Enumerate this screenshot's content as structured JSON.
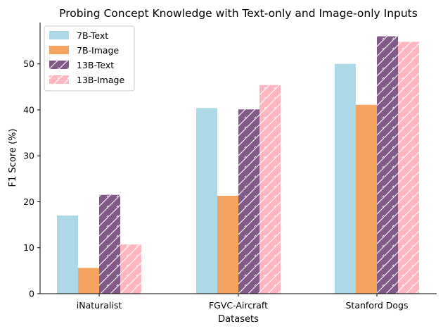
{
  "chart_data": {
    "type": "bar",
    "title": "Probing Concept Knowledge with Text-only and Image-only Inputs",
    "xlabel": "Datasets",
    "ylabel": "F1 Score (%)",
    "categories": [
      "iNaturalist",
      "FGVC-Aircraft",
      "Stanford Dogs"
    ],
    "ylim": [
      0,
      59
    ],
    "yticks": [
      0,
      10,
      20,
      30,
      40,
      50
    ],
    "grid": false,
    "legend_position": "top-left",
    "series": [
      {
        "name": "7B-Text",
        "values": [
          17.0,
          40.4,
          50.0
        ],
        "color": "#add8e6",
        "hatch": false
      },
      {
        "name": "7B-Image",
        "values": [
          5.6,
          21.3,
          41.1
        ],
        "color": "#f4a460",
        "hatch": false
      },
      {
        "name": "13B-Text",
        "values": [
          21.5,
          40.1,
          56.0
        ],
        "color": "#825a87",
        "hatch": true
      },
      {
        "name": "13B-Image",
        "values": [
          10.7,
          45.4,
          54.8
        ],
        "color": "#ffb6c1",
        "hatch": true
      }
    ]
  }
}
